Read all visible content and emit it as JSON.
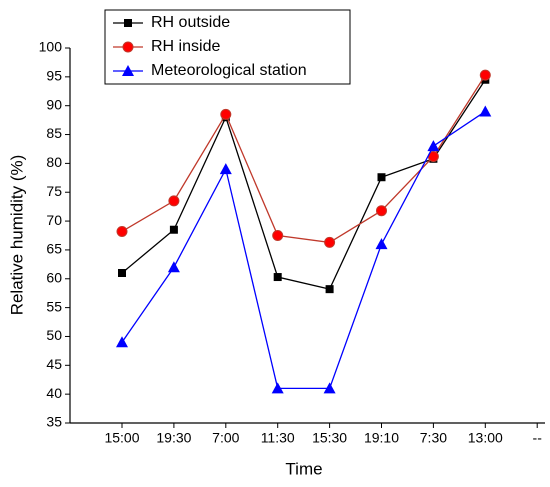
{
  "chart_data": {
    "type": "line",
    "x_label": "Time",
    "y_label": "Relative humidity (%)",
    "categories": [
      "15:00",
      "19:30",
      "7:00",
      "11:30",
      "15:30",
      "19:10",
      "7:30",
      "13:00",
      "--"
    ],
    "series": [
      {
        "name": "RH outside",
        "color": "#000000",
        "marker": "square",
        "values": [
          61,
          68.5,
          88,
          60.3,
          58.2,
          77.6,
          80.8,
          94.5,
          null
        ]
      },
      {
        "name": "RH inside",
        "color": "#c0392b",
        "marker": "circle",
        "values": [
          68.2,
          73.5,
          88.5,
          67.5,
          66.3,
          71.8,
          81.2,
          95.3,
          null
        ]
      },
      {
        "name": "Meteorological station",
        "color": "#0000ff",
        "marker": "triangle",
        "values": [
          49,
          62,
          79,
          41,
          41,
          66,
          83,
          89,
          null
        ]
      }
    ],
    "ylim": [
      35,
      100
    ],
    "yticks": [
      35,
      40,
      45,
      50,
      55,
      60,
      65,
      70,
      75,
      80,
      85,
      90,
      95,
      100
    ],
    "legend": "upper left"
  }
}
